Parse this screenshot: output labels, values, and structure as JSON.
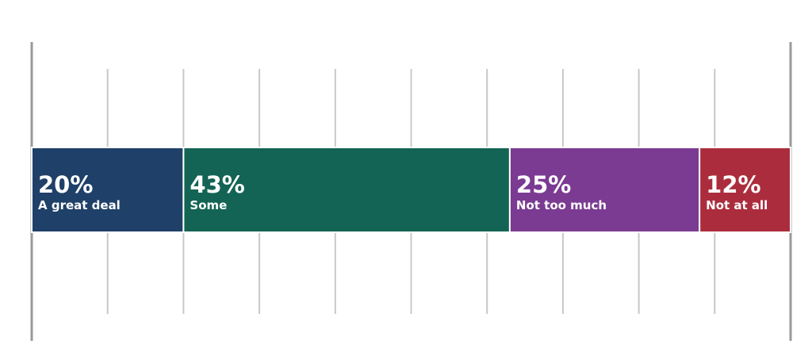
{
  "chart_data": {
    "type": "bar",
    "orientation": "horizontal",
    "stacked": true,
    "categories": [
      null
    ],
    "series": [
      {
        "name": "A great deal",
        "color": "#1f4068",
        "values": [
          20
        ],
        "value_labels": [
          "20%"
        ]
      },
      {
        "name": "Some",
        "color": "#136454",
        "values": [
          43
        ],
        "value_labels": [
          "43%"
        ]
      },
      {
        "name": "Not too much",
        "color": "#7b3b92",
        "values": [
          25
        ],
        "value_labels": [
          "25%"
        ]
      },
      {
        "name": "Not at all",
        "color": "#ab2d3d",
        "values": [
          12
        ],
        "value_labels": [
          "12%"
        ]
      }
    ],
    "xlim": [
      0,
      100
    ],
    "xticks": [
      0,
      10,
      20,
      30,
      40,
      50,
      60,
      70,
      80,
      90,
      100
    ],
    "grid": true
  }
}
